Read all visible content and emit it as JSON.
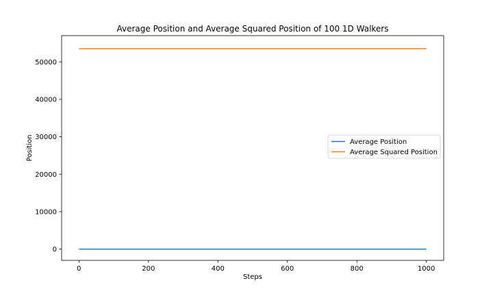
{
  "chart_data": {
    "type": "line",
    "title": "Average Position and Average Squared Position of 100 1D Walkers",
    "xlabel": "Steps",
    "ylabel": "Position",
    "xlim": [
      -50,
      1050
    ],
    "ylim": [
      -3000,
      57000
    ],
    "xticks": [
      0,
      200,
      400,
      600,
      800,
      1000
    ],
    "yticks": [
      0,
      10000,
      20000,
      30000,
      40000,
      50000
    ],
    "grid": false,
    "legend_position": "center-right",
    "series": [
      {
        "name": "Average Position",
        "color": "#1f77b4",
        "x": [
          0,
          1000
        ],
        "y": [
          0,
          0
        ]
      },
      {
        "name": "Average Squared Position",
        "color": "#ff7f0e",
        "x": [
          0,
          1000
        ],
        "y": [
          53500,
          53500
        ]
      }
    ]
  }
}
